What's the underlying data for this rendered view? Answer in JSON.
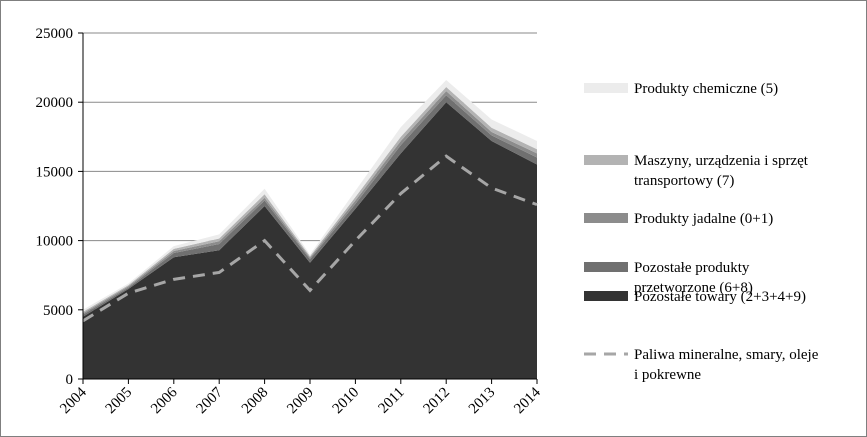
{
  "chart_data": {
    "type": "area",
    "stacked": true,
    "title": "",
    "xlabel": "",
    "ylabel": "",
    "ylim": [
      0,
      25000
    ],
    "yticks": [
      "0",
      "5000",
      "10000",
      "15000",
      "20000",
      "25000"
    ],
    "categories": [
      "2004",
      "2005",
      "2006",
      "2007",
      "2008",
      "2009",
      "2010",
      "2011",
      "2012",
      "2013",
      "2014"
    ],
    "grid": true,
    "legend_position": "right",
    "series": [
      {
        "name": "Pozostałe towary (2+3+4+9)",
        "color": "#333333",
        "values": [
          4500,
          6500,
          8800,
          9300,
          12500,
          8400,
          12300,
          16300,
          20000,
          17200,
          15500
        ]
      },
      {
        "name": "Pozostałe produkty przetworzone (6+8)",
        "color": "#707070",
        "values": [
          150,
          100,
          300,
          450,
          400,
          250,
          350,
          600,
          500,
          400,
          500
        ]
      },
      {
        "name": "Produkty jadalne (0+1)",
        "color": "#8c8c8c",
        "values": [
          100,
          100,
          150,
          200,
          200,
          120,
          250,
          300,
          300,
          250,
          300
        ]
      },
      {
        "name": "Maszyny, urządzenia i sprzęt transportowy (7)",
        "color": "#b3b3b3",
        "values": [
          100,
          80,
          150,
          200,
          250,
          100,
          250,
          300,
          300,
          300,
          300
        ]
      },
      {
        "name": "Produkty chemiczne (5)",
        "color": "#ececec",
        "values": [
          150,
          120,
          200,
          300,
          400,
          130,
          450,
          700,
          500,
          600,
          600
        ]
      }
    ],
    "line_series": {
      "name": "Paliwa mineralne, smary, oleje i pokrewne",
      "color": "#a6a6a6",
      "style": "dashed",
      "values": [
        4200,
        6200,
        7200,
        7700,
        10000,
        6400,
        10000,
        13400,
        16100,
        13800,
        12600
      ]
    },
    "legend_items": [
      {
        "key": "Produkty chemiczne (5)",
        "lines": [
          "Produkty chemiczne (5)"
        ],
        "swatch": "#ececec",
        "kind": "box"
      },
      {
        "key": "Maszyny, urządzenia i sprzęt transportowy (7)",
        "lines": [
          "Maszyny, urządzenia i sprzęt",
          "transportowy (7)"
        ],
        "swatch": "#b3b3b3",
        "kind": "box"
      },
      {
        "key": "Produkty jadalne (0+1)",
        "lines": [
          "Produkty jadalne (0+1)"
        ],
        "swatch": "#8c8c8c",
        "kind": "box"
      },
      {
        "key": "Pozostałe produkty przetworzone (6+8)",
        "lines": [
          "Pozostałe produkty",
          "przetworzone (6+8)"
        ],
        "swatch": "#707070",
        "kind": "box"
      },
      {
        "key": "Pozostałe towary (2+3+4+9)",
        "lines": [
          "Pozostałe towary (2+3+4+9)"
        ],
        "swatch": "#333333",
        "kind": "box"
      },
      {
        "key": "Paliwa mineralne, smary, oleje i pokrewne",
        "lines": [
          "Paliwa mineralne, smary, oleje",
          "i pokrewne"
        ],
        "swatch": "#a6a6a6",
        "kind": "dash"
      }
    ]
  }
}
